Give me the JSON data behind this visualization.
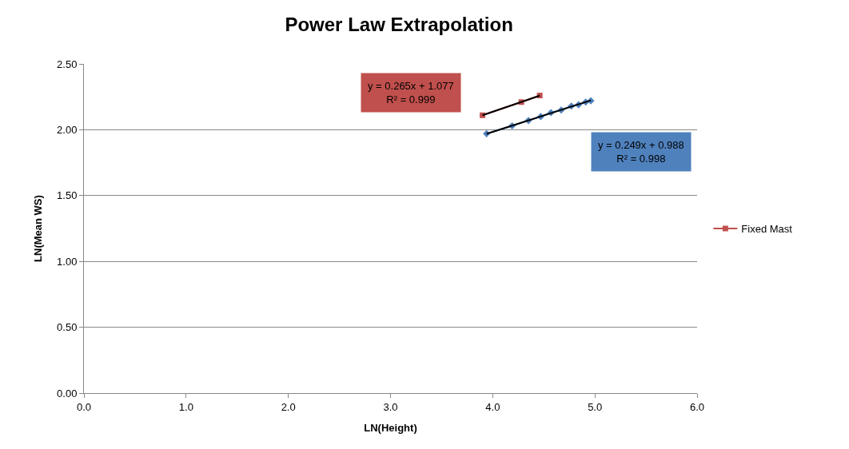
{
  "chart_data": {
    "type": "line",
    "title": "Power Law Extrapolation",
    "xlabel": "LN(Height)",
    "ylabel": "LN(Mean WS)",
    "xlim": [
      0,
      6
    ],
    "xticks": [
      {
        "value": 0,
        "label": "0.0"
      },
      {
        "value": 1,
        "label": "1.0"
      },
      {
        "value": 2,
        "label": "2.0"
      },
      {
        "value": 3,
        "label": "3.0"
      },
      {
        "value": 4,
        "label": "4.0"
      },
      {
        "value": 5,
        "label": "5.0"
      },
      {
        "value": 6,
        "label": "6.0"
      }
    ],
    "ylim": [
      0,
      2.5
    ],
    "yticks": [
      {
        "value": 0,
        "label": "0.00"
      },
      {
        "value": 0.5,
        "label": "0.50"
      },
      {
        "value": 1,
        "label": "1.00"
      },
      {
        "value": 1.5,
        "label": "1.50"
      },
      {
        "value": 2,
        "label": "2.00"
      },
      {
        "value": 2.5,
        "label": "2.50"
      }
    ],
    "grid": "y",
    "legend": "right",
    "series": [
      {
        "color": "#4f81bd",
        "marker": "diamond",
        "x": [
          3.94,
          4.19,
          4.35,
          4.47,
          4.57,
          4.67,
          4.77,
          4.84,
          4.91,
          4.96
        ],
        "values": [
          1.97,
          2.03,
          2.07,
          2.1,
          2.13,
          2.15,
          2.18,
          2.19,
          2.21,
          2.22
        ]
      },
      {
        "name": "Fixed Mast",
        "color": "#c0504d",
        "marker": "square",
        "x": [
          3.9,
          4.28,
          4.46
        ],
        "values": [
          2.11,
          2.21,
          2.26
        ]
      },
      {
        "color": "#000000",
        "marker": "none",
        "x": [
          3.94,
          4.96
        ],
        "values": [
          1.969,
          2.223
        ]
      },
      {
        "color": "#000000",
        "marker": "none",
        "x": [
          3.9,
          4.46
        ],
        "values": [
          2.11,
          2.259
        ]
      }
    ],
    "annotations": [
      "y = 0.265x + 1.077\nR² = 0.999",
      "y = 0.249x + 0.988\nR² = 0.998"
    ]
  }
}
